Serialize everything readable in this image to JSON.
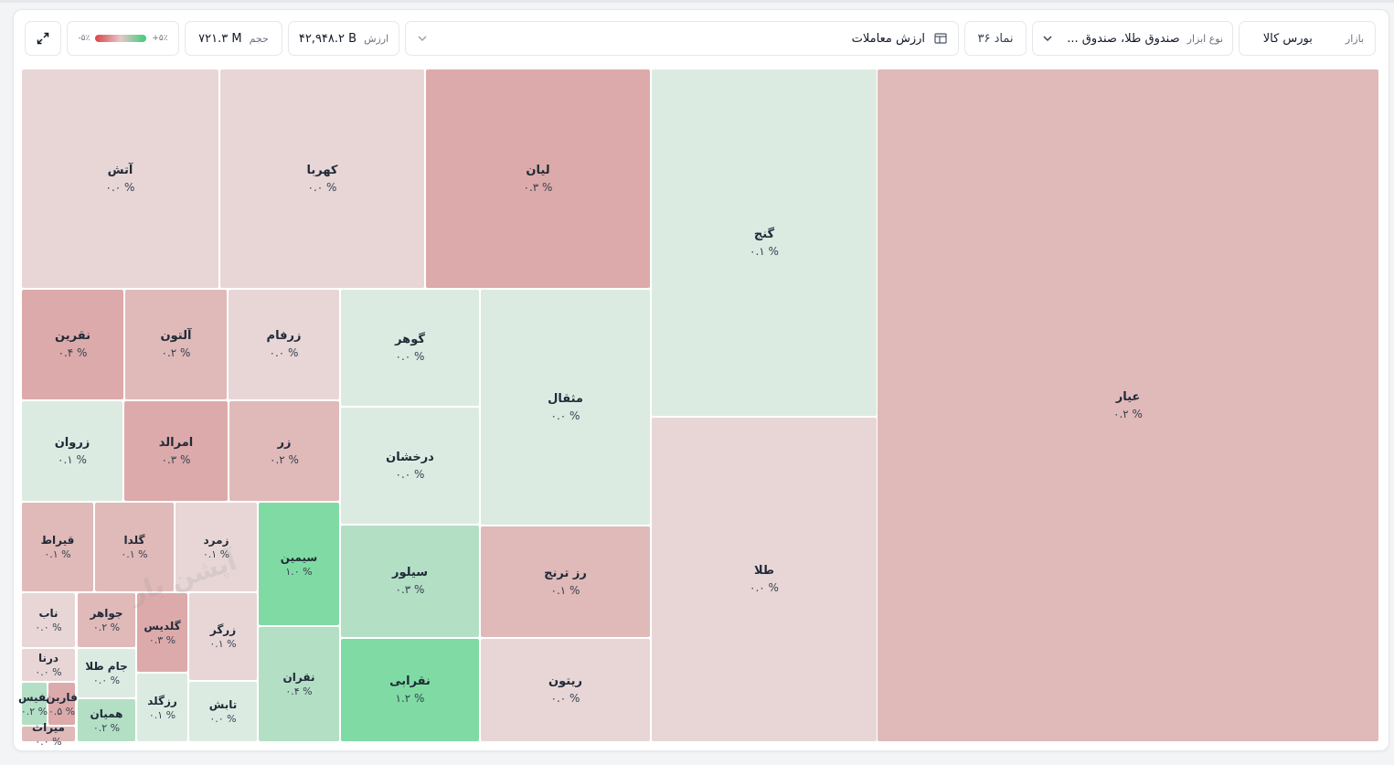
{
  "toolbar": {
    "market_label": "بازار",
    "market_value": "بورس کالا",
    "instrument_label": "نوع ابزار",
    "instrument_value": "صندوق طلا، صندوق ...",
    "symbol_count": "۳۶ نماد",
    "metric_value": "ارزش معاملات",
    "value_label": "ارزش",
    "value_amount": "۴۲,۹۴۸.۲ B",
    "volume_label": "حجم",
    "volume_amount": "۷۲۱.۳ M",
    "legend_min": "-۵٪",
    "legend_max": "+۵٪",
    "icons": {
      "market": "dropdown",
      "instrument": "chevron-down-icon",
      "metric_layout": "layout-icon",
      "metric_chevron": "chevron-down-icon",
      "expand": "expand-icon"
    }
  },
  "watermark": "آپشن بار",
  "colors": {
    "red_light": "#e8d6d6",
    "red_mid": "#e0b9b9",
    "red_strong": "#dcaaaa",
    "green_light": "#dcebe2",
    "green_mid": "#b3dfc5",
    "green_strong": "#7fdba3"
  },
  "tiles": [
    {
      "name": "عیار",
      "pct": "۰.۲ %"
    },
    {
      "name": "گنج",
      "pct": "۰.۱ %"
    },
    {
      "name": "طلا",
      "pct": "۰.۰ %"
    },
    {
      "name": "لیان",
      "pct": "۰.۳ %"
    },
    {
      "name": "کهربا",
      "pct": "۰.۰ %"
    },
    {
      "name": "آتش",
      "pct": "۰.۰ %"
    },
    {
      "name": "مثقال",
      "pct": "۰.۰ %"
    },
    {
      "name": "رز ترنج",
      "pct": "۰.۱ %"
    },
    {
      "name": "ریتون",
      "pct": "۰.۰ %"
    },
    {
      "name": "گوهر",
      "pct": "۰.۰ %"
    },
    {
      "name": "درخشان",
      "pct": "۰.۰ %"
    },
    {
      "name": "سیلور",
      "pct": "۰.۳ %"
    },
    {
      "name": "نقرابی",
      "pct": "۱.۲ %"
    },
    {
      "name": "زرفام",
      "pct": "۰.۰ %"
    },
    {
      "name": "آلتون",
      "pct": "۰.۲ %"
    },
    {
      "name": "نقرین",
      "pct": "۰.۴ %"
    },
    {
      "name": "زر",
      "pct": "۰.۲ %"
    },
    {
      "name": "امرالد",
      "pct": "۰.۳ %"
    },
    {
      "name": "زروان",
      "pct": "۰.۱ %"
    },
    {
      "name": "سیمین",
      "pct": "۱.۰ %"
    },
    {
      "name": "نقران",
      "pct": "۰.۴ %"
    },
    {
      "name": "زمرد",
      "pct": "۰.۱ %"
    },
    {
      "name": "گلدا",
      "pct": "۰.۱ %"
    },
    {
      "name": "قیراط",
      "pct": "۰.۱ %"
    },
    {
      "name": "زرگر",
      "pct": "۰.۱ %"
    },
    {
      "name": "تابش",
      "pct": "۰.۰ %"
    },
    {
      "name": "گلدیس",
      "pct": "۰.۳ %"
    },
    {
      "name": "رزگلد",
      "pct": "۰.۱ %"
    },
    {
      "name": "جواهر",
      "pct": "۰.۲ %"
    },
    {
      "name": "جام طلا",
      "pct": "۰.۰ %"
    },
    {
      "name": "همیان",
      "pct": "۰.۲ %"
    },
    {
      "name": "ناب",
      "pct": "۰.۰ %"
    },
    {
      "name": "درنا",
      "pct": "۰.۰ %"
    },
    {
      "name": "نفیس",
      "pct": "۰.۲ %"
    },
    {
      "name": "فاربن",
      "pct": "۰.۵ %"
    },
    {
      "name": "میراث",
      "pct": "۰.۰ %"
    }
  ]
}
